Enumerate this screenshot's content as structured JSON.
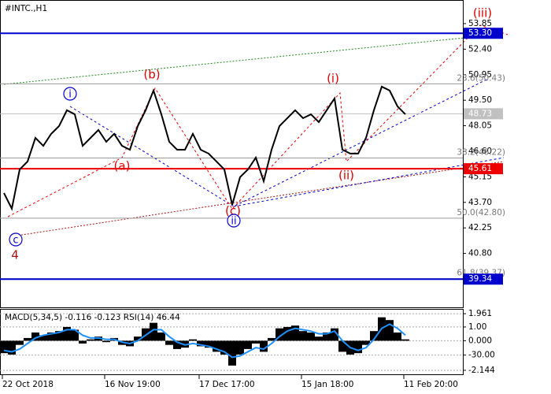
{
  "chart_data": [
    {
      "type": "line",
      "title": "#INTC.,H1",
      "categories": [
        "22 Oct 2018",
        null,
        null,
        null,
        null,
        null,
        null,
        null,
        null,
        null,
        null,
        null,
        null,
        "16 Nov 19:00",
        null,
        null,
        null,
        null,
        null,
        null,
        null,
        null,
        null,
        null,
        null,
        "17 Dec 17:00",
        null,
        null,
        null,
        null,
        null,
        null,
        null,
        null,
        null,
        null,
        null,
        null,
        "15 Jan 18:00",
        null,
        null,
        null,
        null,
        null,
        null,
        null,
        null,
        null,
        null,
        null,
        null,
        "11 Feb 20:00",
        null,
        null,
        null,
        null,
        null,
        null,
        null
      ],
      "values": [
        44.23,
        43.34,
        45.57,
        46.02,
        47.36,
        46.91,
        47.59,
        48.03,
        48.93,
        48.7,
        46.91,
        47.36,
        47.81,
        47.14,
        47.59,
        46.91,
        46.69,
        48.03,
        48.93,
        50.05,
        48.7,
        47.14,
        46.69,
        46.69,
        47.59,
        46.69,
        46.47,
        46.02,
        45.57,
        43.56,
        45.13,
        45.57,
        46.24,
        44.9,
        46.69,
        48.03,
        48.48,
        48.93,
        48.48,
        48.7,
        48.26,
        48.93,
        49.6,
        46.69,
        46.47,
        46.47,
        47.36,
        48.93,
        50.27,
        50.05,
        49.15,
        48.7,
        null,
        null,
        null,
        null,
        null,
        null,
        null
      ],
      "color": "#000000",
      "ylim": [
        37.74,
        55.19
      ],
      "yticks": [
        53.85,
        {
          "value": 52.4,
          "label": "52.40"
        },
        50.95,
        {
          "value": 49.5,
          "label": "49.50"
        },
        48.05,
        {
          "value": 46.6,
          "label": "46.60"
        },
        45.15,
        {
          "value": 43.7,
          "label": "43.70"
        },
        42.25,
        {
          "value": 40.8,
          "label": "40.80"
        }
      ],
      "levels": [
        {
          "value": 53.3,
          "label": "53.30",
          "color": "#0000cc"
        },
        {
          "value": 45.61,
          "label": "45.61",
          "color": "#ee0000"
        },
        {
          "value": 39.34,
          "label": "39.34",
          "color": "#0000cc"
        },
        {
          "value": 48.73,
          "label": "48.73",
          "color": "#c0c0c0"
        }
      ],
      "fib_levels": [
        {
          "value": 50.43,
          "label": "23.6(50.43)"
        },
        {
          "value": 46.22,
          "label": "38.2(46.22)"
        },
        {
          "value": 42.8,
          "label": "50.0(42.80)"
        },
        {
          "value": 39.37,
          "label": "61.8(39.37)"
        }
      ],
      "annotations": [
        {
          "text": "i",
          "color": "#0000cc",
          "circled": true
        },
        {
          "text": "(b)",
          "color": "#dd0000"
        },
        {
          "text": "(a)",
          "color": "#dd0000"
        },
        {
          "text": "(c)",
          "color": "#dd0000"
        },
        {
          "text": "ii",
          "color": "#0000cc",
          "circled": true
        },
        {
          "text": "c",
          "color": "#0000cc",
          "circled": true
        },
        {
          "text": "4",
          "color": "#aa1111"
        },
        {
          "text": "(i)",
          "color": "#dd0000"
        },
        {
          "text": "(ii)",
          "color": "#dd0000"
        },
        {
          "text": "(iii)",
          "color": "#dd0000"
        }
      ]
    },
    {
      "type": "macd",
      "title": "MACD(5,34,5) -0.116 -0.123 RSI(14) 46.44",
      "values": [
        -0.9,
        -1.0,
        -0.3,
        0.2,
        0.6,
        0.4,
        0.6,
        0.7,
        1.0,
        0.8,
        -0.2,
        0.1,
        0.3,
        -0.1,
        0.2,
        -0.3,
        -0.4,
        0.3,
        0.9,
        1.3,
        0.6,
        -0.3,
        -0.6,
        -0.5,
        0.1,
        -0.4,
        -0.5,
        -0.8,
        -1.0,
        -1.8,
        -1.0,
        -0.6,
        -0.2,
        -0.8,
        0.2,
        0.9,
        1.0,
        1.1,
        0.7,
        0.6,
        0.3,
        0.6,
        0.9,
        -0.8,
        -1.0,
        -0.9,
        -0.3,
        0.7,
        1.7,
        1.5,
        0.6,
        0.1,
        null,
        null,
        null,
        null,
        null,
        null,
        null
      ],
      "signal_values": [
        -0.7,
        -0.8,
        -0.6,
        -0.2,
        0.2,
        0.4,
        0.5,
        0.6,
        0.8,
        0.8,
        0.4,
        0.2,
        0.2,
        0.1,
        0.1,
        -0.1,
        -0.2,
        0.0,
        0.4,
        0.8,
        0.8,
        0.3,
        -0.1,
        -0.3,
        -0.2,
        -0.3,
        -0.4,
        -0.6,
        -0.8,
        -1.2,
        -1.1,
        -0.8,
        -0.5,
        -0.6,
        -0.2,
        0.3,
        0.7,
        0.9,
        0.8,
        0.7,
        0.5,
        0.5,
        0.7,
        0.0,
        -0.5,
        -0.7,
        -0.5,
        0.1,
        0.9,
        1.2,
        0.9,
        0.4,
        null,
        null,
        null,
        null,
        null,
        null,
        null
      ],
      "color": "#000000",
      "signal_color": "#1e90ff",
      "ylim": [
        -2.49,
        2.31
      ],
      "yticks": [
        1.961,
        {
          "value": 1,
          "label": "1.00"
        },
        {
          "value": 0,
          "label": "0.000"
        },
        -2.144
      ],
      "y2lim": [
        -72,
        67
      ],
      "y2ticks": [
        {
          "value": -30,
          "label": "-30.00"
        }
      ],
      "grid": true
    }
  ]
}
